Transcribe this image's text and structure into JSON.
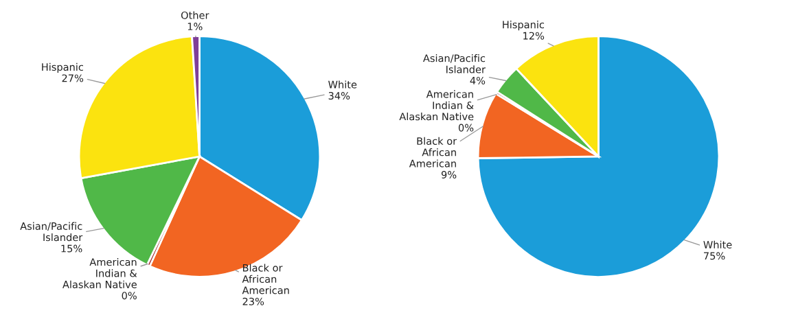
{
  "chart_data": [
    {
      "type": "pie",
      "categories": [
        "White",
        "Black or African American",
        "American Indian & Alaskan Native",
        "Asian/Pacific Islander",
        "Hispanic",
        "Other"
      ],
      "values": [
        34,
        23,
        0.4,
        15,
        27,
        1
      ],
      "value_labels": [
        "34%",
        "23%",
        "0%",
        "15%",
        "27%",
        "1%"
      ],
      "colors": [
        "#1b9dd9",
        "#f26522",
        "#9e2a2b",
        "#50b848",
        "#fbe30f",
        "#7f3f98"
      ]
    },
    {
      "type": "pie",
      "categories": [
        "White",
        "Black or African American",
        "American Indian & Alaskan Native",
        "Asian/Pacific Islander",
        "Hispanic"
      ],
      "values": [
        75,
        9,
        0.3,
        4,
        12
      ],
      "value_labels": [
        "75%",
        "9%",
        "0%",
        "4%",
        "12%"
      ],
      "colors": [
        "#1b9dd9",
        "#f26522",
        "#9e2a2b",
        "#50b848",
        "#fbe30f"
      ]
    }
  ]
}
